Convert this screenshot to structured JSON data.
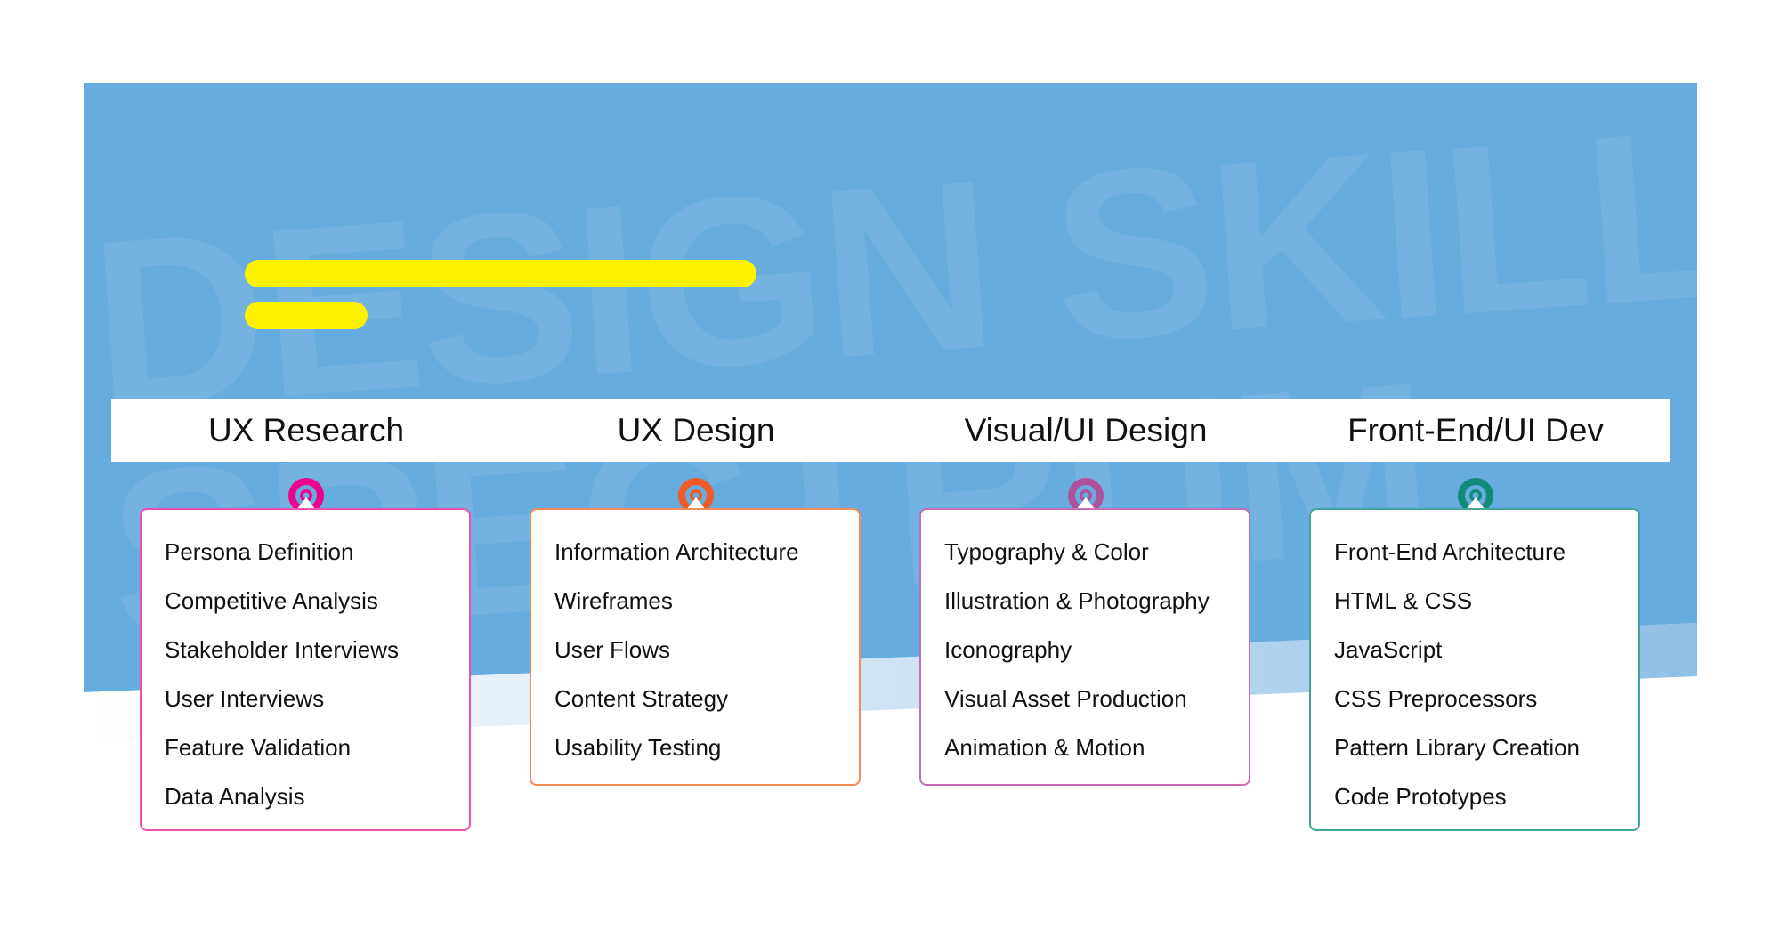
{
  "background": {
    "watermark_line1": "DESIGN SKILLS",
    "watermark_line2": "SPECTRUM",
    "blue": "#67ACDE",
    "accent_bar": "#FFF200"
  },
  "columns": [
    {
      "title": "UX Research",
      "color": "#EC008C",
      "icon": "target-icon",
      "items": [
        "Persona Definition",
        "Competitive Analysis",
        "Stakeholder Interviews",
        "User Interviews",
        "Feature Validation",
        "Data Analysis"
      ]
    },
    {
      "title": "UX Design",
      "color": "#F15A24",
      "icon": "target-icon",
      "items": [
        "Information Architecture",
        "Wireframes",
        "User Flows",
        "Content Strategy",
        "Usability Testing"
      ]
    },
    {
      "title": "Visual/UI Design",
      "color": "#B0509E",
      "icon": "target-icon",
      "items": [
        "Typography & Color",
        "Illustration & Photography",
        "Iconography",
        "Visual Asset Production",
        "Animation & Motion"
      ]
    },
    {
      "title": "Front-End/UI Dev",
      "color": "#12897A",
      "icon": "target-icon",
      "items": [
        "Front-End Architecture",
        "HTML & CSS",
        "JavaScript",
        "CSS Preprocessors",
        "Pattern Library Creation",
        "Code Prototypes"
      ]
    }
  ]
}
